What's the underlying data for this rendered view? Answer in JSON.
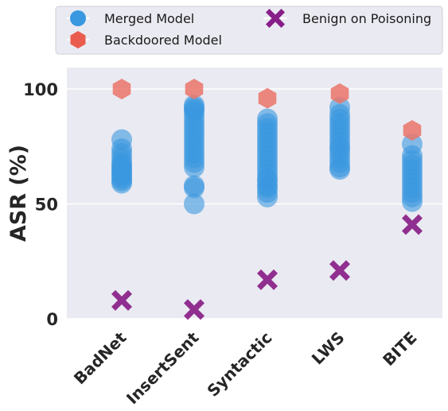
{
  "chart_data": {
    "type": "scatter",
    "title": "",
    "xlabel": "",
    "ylabel": "ASR (%)",
    "categories": [
      "BadNet",
      "InsertSent",
      "Syntactic",
      "LWS",
      "BITE"
    ],
    "ylim": [
      0,
      100
    ],
    "yticks": [
      0,
      50,
      100
    ],
    "grid": true,
    "legend_position": "top",
    "series": [
      {
        "name": "Merged Model",
        "marker": "circle",
        "color": "#3a98e0",
        "values": [
          [
            59,
            60,
            61,
            62,
            63,
            64,
            65,
            66,
            67,
            68,
            70,
            72,
            74,
            78
          ],
          [
            50,
            57,
            58,
            66,
            68,
            70,
            72,
            74,
            76,
            78,
            80,
            82,
            84,
            86,
            88,
            90,
            91,
            92,
            93
          ],
          [
            53,
            55,
            57,
            58,
            60,
            61,
            63,
            65,
            67,
            69,
            71,
            73,
            75,
            77,
            79,
            81,
            83,
            85,
            87
          ],
          [
            65,
            66,
            68,
            70,
            72,
            74,
            75,
            77,
            79,
            81,
            83,
            85,
            87,
            89,
            92
          ],
          [
            51,
            53,
            55,
            57,
            59,
            61,
            63,
            65,
            67,
            69,
            71,
            76
          ]
        ]
      },
      {
        "name": "Backdoored Model",
        "marker": "hexagon",
        "color": "#ea7468",
        "values": [
          100,
          100,
          96,
          98,
          82
        ]
      },
      {
        "name": "Benign on Poisoning",
        "marker": "x",
        "color": "#881e88",
        "values": [
          8,
          4,
          17,
          21,
          41
        ]
      }
    ]
  }
}
